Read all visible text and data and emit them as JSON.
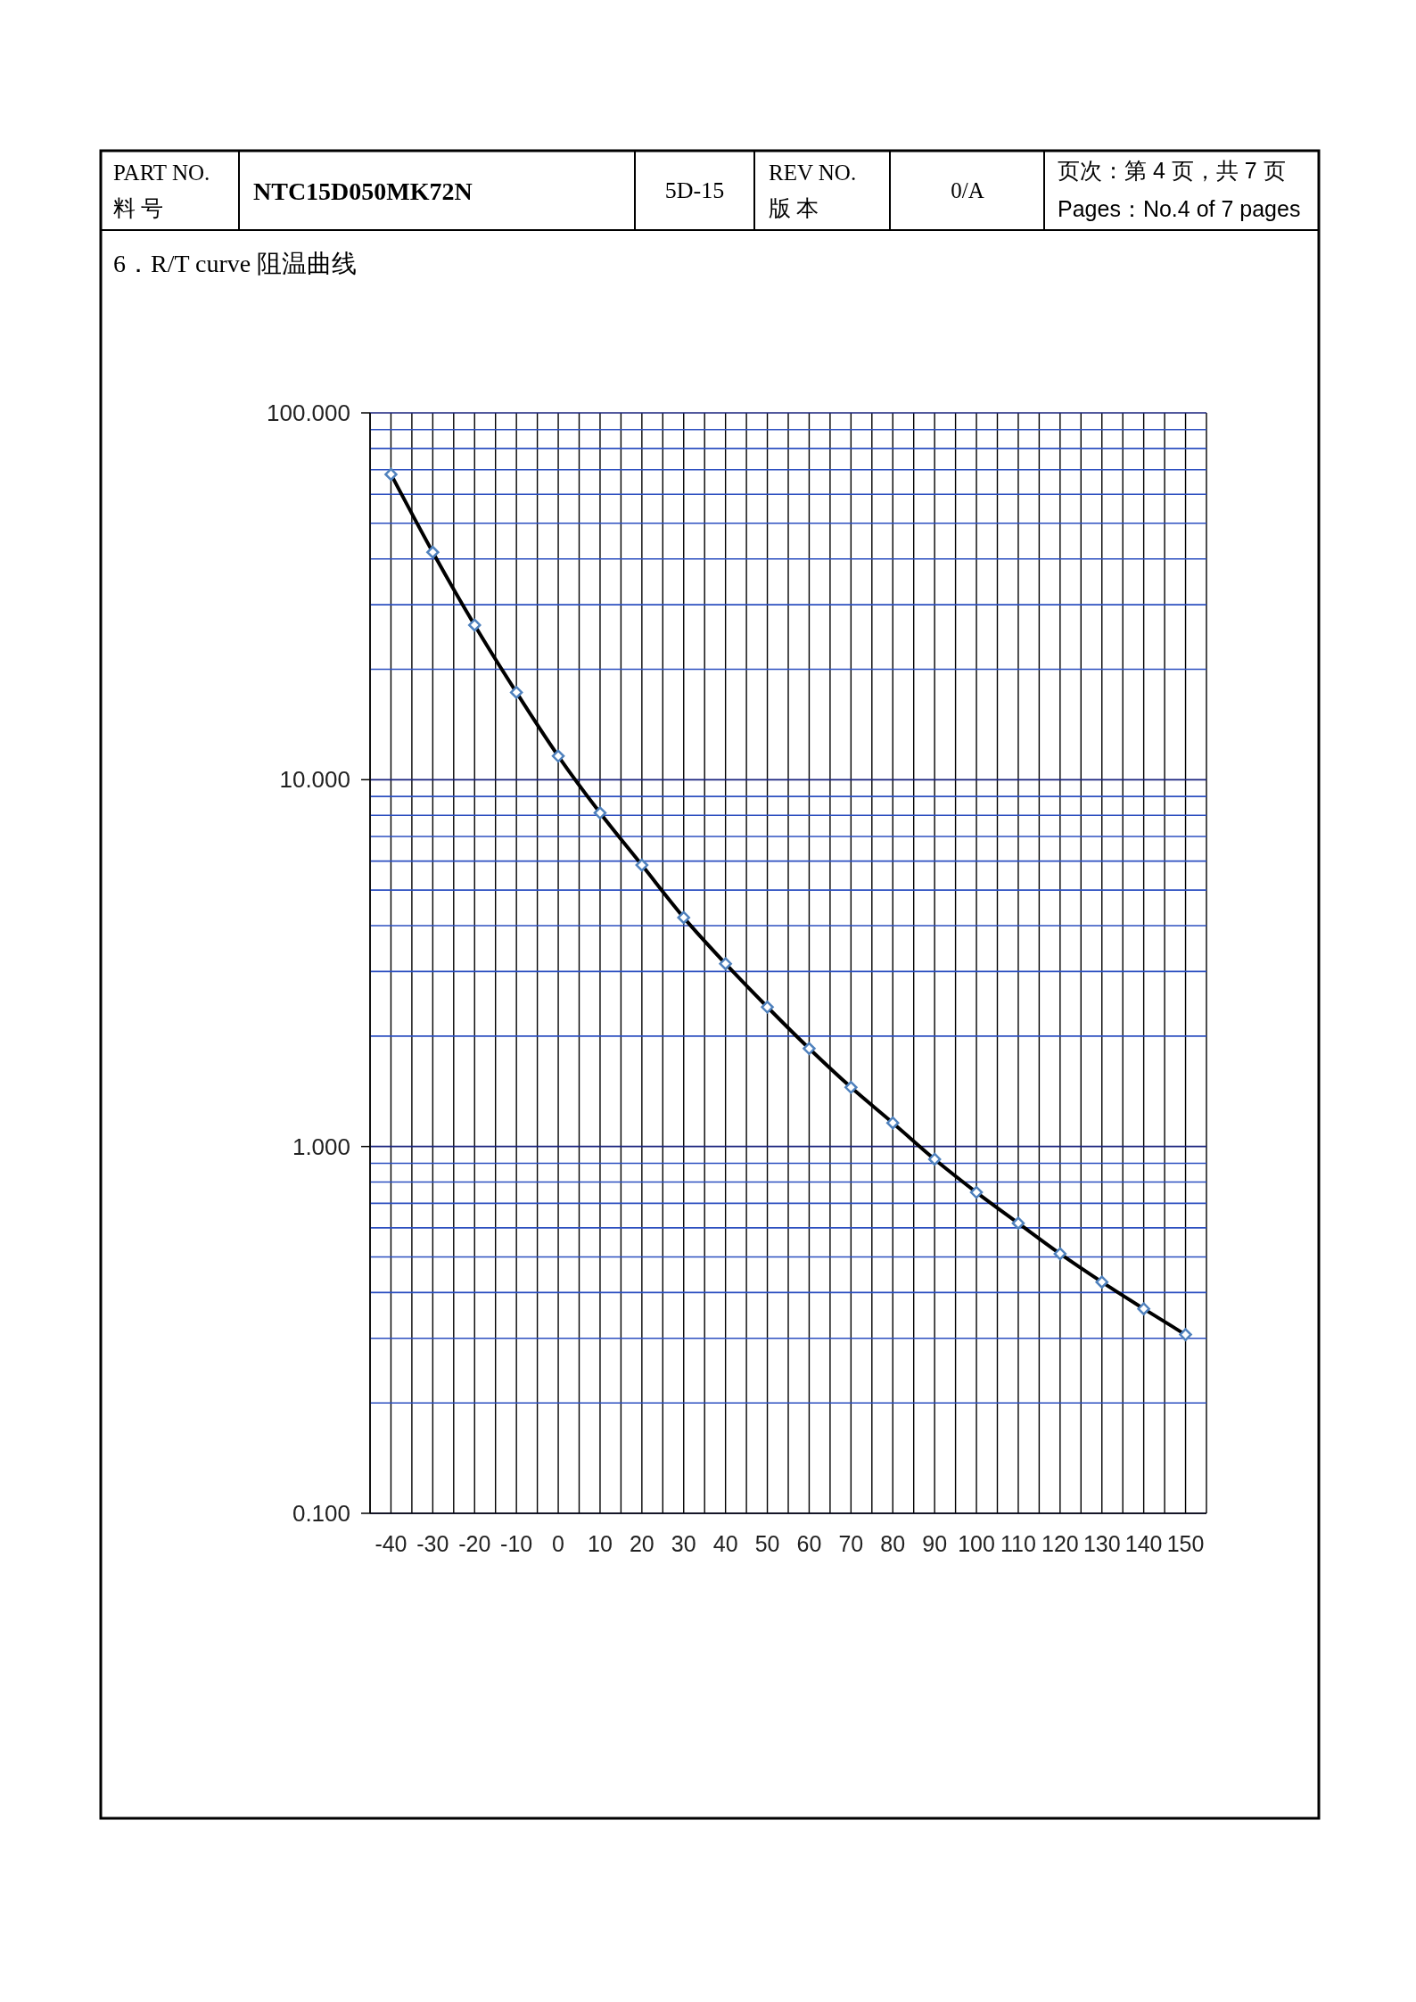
{
  "chart_data": {
    "type": "line",
    "title": "6．R/T curve  阻温曲线",
    "annotations": [
      "PART NO.",
      "料 号",
      "NTC15D050MK72N",
      "5D-15",
      "REV NO.",
      "版 本",
      "0/A",
      "页次：第 4 页，共 7 页",
      "Pages：No.4 of 7 pages"
    ],
    "categories": [
      "-40",
      "-30",
      "-20",
      "-10",
      "0",
      "10",
      "20",
      "30",
      "40",
      "50",
      "60",
      "70",
      "80",
      "90",
      "100",
      "110",
      "120",
      "130",
      "140",
      "150"
    ],
    "series": [
      {
        "color": "#000000",
        "values": [
          68.0,
          41.7,
          26.4,
          17.3,
          11.6,
          8.12,
          5.85,
          4.21,
          3.15,
          2.4,
          1.85,
          1.45,
          1.16,
          0.923,
          0.75,
          0.618,
          0.51,
          0.427,
          0.361,
          0.307
        ]
      }
    ],
    "log": true,
    "ylim": [
      0.1,
      100
    ],
    "yticks": [
      {
        "value": 0.1,
        "label": "0.100"
      },
      {
        "value": 0.2,
        "label": null
      },
      {
        "value": 0.3,
        "label": null
      },
      {
        "value": 0.4,
        "label": null
      },
      {
        "value": 0.5,
        "label": null
      },
      {
        "value": 0.6,
        "label": null
      },
      {
        "value": 0.7,
        "label": null
      },
      {
        "value": 0.8,
        "label": null
      },
      {
        "value": 0.9,
        "label": null
      },
      {
        "value": 1,
        "label": "1.000"
      },
      {
        "value": 2,
        "label": null
      },
      {
        "value": 3,
        "label": null
      },
      {
        "value": 4,
        "label": null
      },
      {
        "value": 5,
        "label": null
      },
      {
        "value": 6,
        "label": null
      },
      {
        "value": 7,
        "label": null
      },
      {
        "value": 8,
        "label": null
      },
      {
        "value": 9,
        "label": null
      },
      {
        "value": 10,
        "label": "10.000"
      },
      {
        "value": 20,
        "label": null
      },
      {
        "value": 30,
        "label": null
      },
      {
        "value": 40,
        "label": null
      },
      {
        "value": 50,
        "label": null
      },
      {
        "value": 60,
        "label": null
      },
      {
        "value": 70,
        "label": null
      },
      {
        "value": 80,
        "label": null
      },
      {
        "value": 90,
        "label": null
      },
      {
        "value": 100,
        "label": "100.000"
      }
    ],
    "grid": true,
    "marker": "diamond",
    "line_style": "solid"
  }
}
